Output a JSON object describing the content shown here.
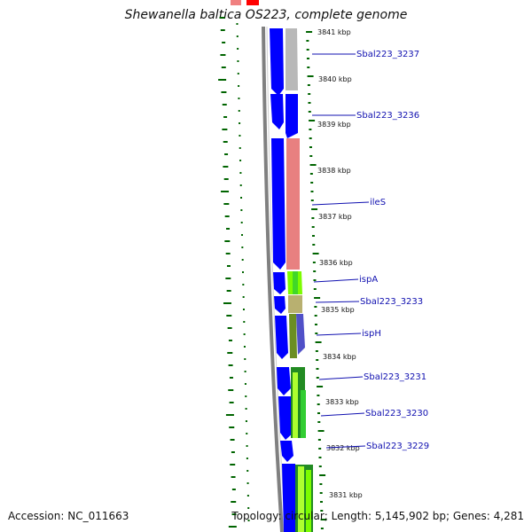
{
  "title": "Shewanella baltica OS223, complete genome",
  "accession": "Accession: NC_011663",
  "topology": "Topology: circular; Length: 5,145,902 bp; Genes: 4,281",
  "colors": {
    "backbone": "#808080",
    "cds": "#0000ff",
    "tick": "#006400",
    "label": "#1010b0",
    "frame": "#ff0000"
  },
  "kbp_ticks": [
    "3841 kbp",
    "3840 kbp",
    "3839 kbp",
    "3838 kbp",
    "3837 kbp",
    "3836 kbp",
    "3835 kbp",
    "3834 kbp",
    "3833 kbp",
    "3832 kbp",
    "3831 kbp"
  ],
  "genes": [
    "Sbal223_3237",
    "Sbal223_3236",
    "ileS",
    "ispA",
    "Sbal223_3233",
    "ispH",
    "Sbal223_3231",
    "Sbal223_3230",
    "Sbal223_3229"
  ]
}
